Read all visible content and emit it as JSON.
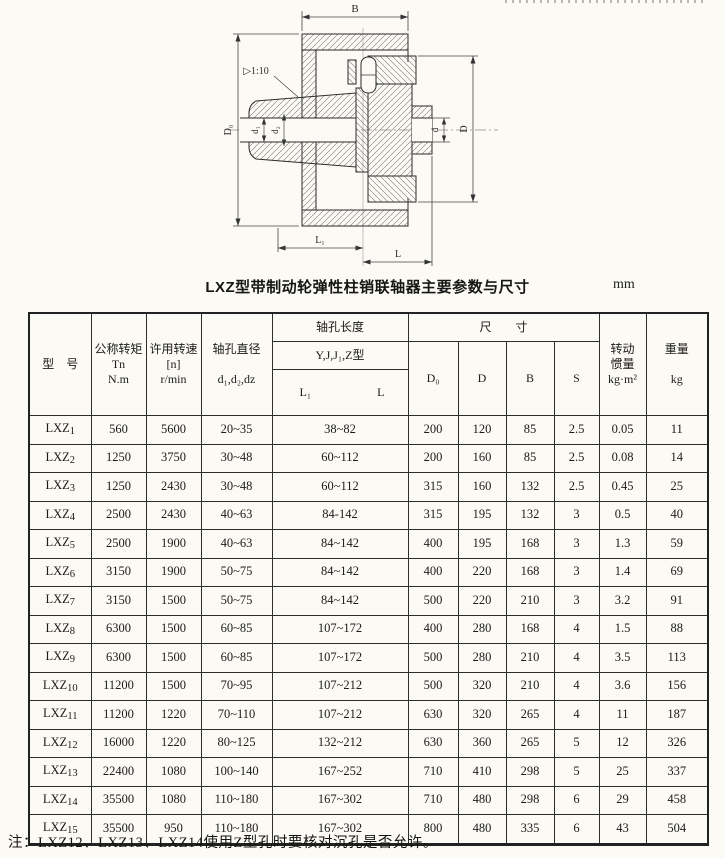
{
  "title": {
    "text": "LXZ型带制动轮弹性柱销联轴器主要参数与尺寸",
    "unit": "mm"
  },
  "drawing": {
    "labels": {
      "B": "B",
      "taper": "▷1:10",
      "D0": "D₀",
      "d1": "d₁",
      "d2": "d₂",
      "d": "d",
      "D": "D",
      "L1": "L₁",
      "L": "L"
    }
  },
  "table": {
    "headers": {
      "model": "型　号",
      "torque": "公称转矩Tn\nN.m",
      "speed": "许用转速\n[n]\nr/min",
      "bore_dia": "轴孔直径\n\nd₁,d₂,dz",
      "bore_len": "轴孔长度",
      "bore_len_type": "Y,J,J₁,Z型",
      "L1": "L₁",
      "L": "L",
      "size": "尺　　寸",
      "D0": "D₀",
      "D": "D",
      "B": "B",
      "S": "S",
      "inertia": "转动\n惯量\nkg·m²",
      "weight": "重量\n\nkg"
    },
    "rows": [
      [
        "LXZ1",
        "560",
        "5600",
        "20~35",
        "38~82",
        "200",
        "120",
        "85",
        "2.5",
        "0.05",
        "11"
      ],
      [
        "LXZ2",
        "1250",
        "3750",
        "30~48",
        "60~112",
        "200",
        "160",
        "85",
        "2.5",
        "0.08",
        "14"
      ],
      [
        "LXZ3",
        "1250",
        "2430",
        "30~48",
        "60~112",
        "315",
        "160",
        "132",
        "2.5",
        "0.45",
        "25"
      ],
      [
        "LXZ4",
        "2500",
        "2430",
        "40~63",
        "84-142",
        "315",
        "195",
        "132",
        "3",
        "0.5",
        "40"
      ],
      [
        "LXZ5",
        "2500",
        "1900",
        "40~63",
        "84~142",
        "400",
        "195",
        "168",
        "3",
        "1.3",
        "59"
      ],
      [
        "LXZ6",
        "3150",
        "1900",
        "50~75",
        "84~142",
        "400",
        "220",
        "168",
        "3",
        "1.4",
        "69"
      ],
      [
        "LXZ7",
        "3150",
        "1500",
        "50~75",
        "84~142",
        "500",
        "220",
        "210",
        "3",
        "3.2",
        "91"
      ],
      [
        "LXZ8",
        "6300",
        "1500",
        "60~85",
        "107~172",
        "400",
        "280",
        "168",
        "4",
        "1.5",
        "88"
      ],
      [
        "LXZ9",
        "6300",
        "1500",
        "60~85",
        "107~172",
        "500",
        "280",
        "210",
        "4",
        "3.5",
        "113"
      ],
      [
        "LXZ10",
        "11200",
        "1500",
        "70~95",
        "107~212",
        "500",
        "320",
        "210",
        "4",
        "3.6",
        "156"
      ],
      [
        "LXZ11",
        "11200",
        "1220",
        "70~110",
        "107~212",
        "630",
        "320",
        "265",
        "4",
        "11",
        "187"
      ],
      [
        "LXZ12",
        "16000",
        "1220",
        "80~125",
        "132~212",
        "630",
        "360",
        "265",
        "5",
        "12",
        "326"
      ],
      [
        "LXZ13",
        "22400",
        "1080",
        "100~140",
        "167~252",
        "710",
        "410",
        "298",
        "5",
        "25",
        "337"
      ],
      [
        "LXZ14",
        "35500",
        "1080",
        "110~180",
        "167~302",
        "710",
        "480",
        "298",
        "6",
        "29",
        "458"
      ],
      [
        "LXZ15",
        "35500",
        "950",
        "110~180",
        "167~302",
        "800",
        "480",
        "335",
        "6",
        "43",
        "504"
      ]
    ]
  },
  "note": "注：LXZ12、LXZ13、LXZ14使用Z型孔时要核对沉孔是否允许。"
}
